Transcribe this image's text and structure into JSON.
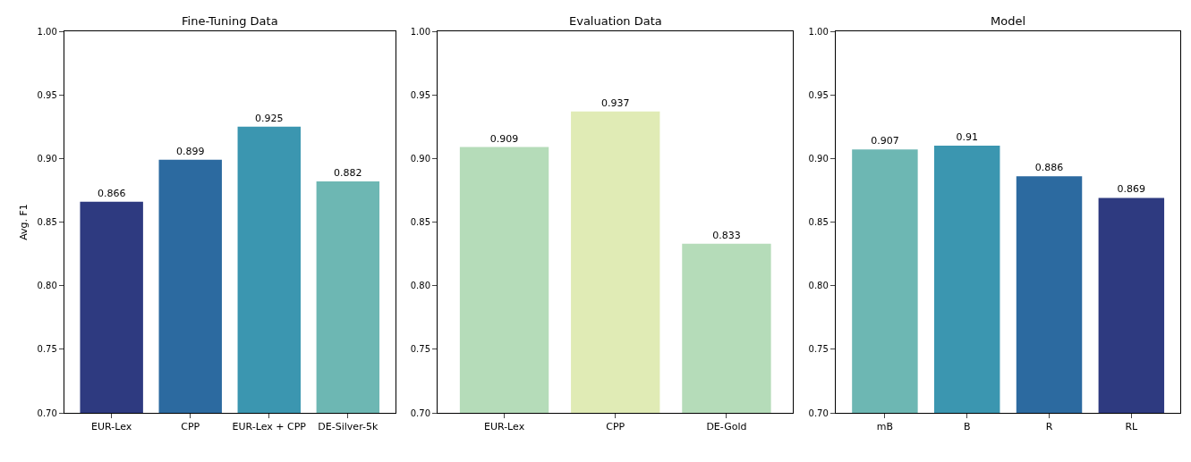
{
  "chart_data": [
    {
      "type": "bar",
      "title": "Fine-Tuning Data",
      "ylabel": "Avg. F1",
      "categories": [
        "EUR-Lex",
        "CPP",
        "EUR-Lex + CPP",
        "DE-Silver-5k"
      ],
      "values": [
        0.866,
        0.899,
        0.925,
        0.882
      ],
      "colors": [
        "#2e3a80",
        "#2c6aa0",
        "#3b96b0",
        "#6db7b3"
      ],
      "ylim": [
        0.7,
        1.0
      ],
      "yticks": [
        {
          "value": 0.7,
          "label": "0.70"
        },
        {
          "value": 0.75,
          "label": "0.75"
        },
        {
          "value": 0.8,
          "label": "0.80"
        },
        {
          "value": 0.85,
          "label": "0.85"
        },
        {
          "value": 0.9,
          "label": "0.90"
        },
        {
          "value": 0.95,
          "label": "0.95"
        },
        {
          "value": 1.0,
          "label": "1.00"
        }
      ],
      "data_labels": true
    },
    {
      "type": "bar",
      "title": "Evaluation Data",
      "categories": [
        "EUR-Lex",
        "CPP",
        "DE-Gold"
      ],
      "values": [
        0.909,
        0.937,
        0.833
      ],
      "colors": [
        "#b5dcb9",
        "#e0ebb5",
        "#b5dcb9"
      ],
      "ylim": [
        0.7,
        1.0
      ],
      "yticks": [
        {
          "value": 0.7,
          "label": "0.70"
        },
        {
          "value": 0.75,
          "label": "0.75"
        },
        {
          "value": 0.8,
          "label": "0.80"
        },
        {
          "value": 0.85,
          "label": "0.85"
        },
        {
          "value": 0.9,
          "label": "0.90"
        },
        {
          "value": 0.95,
          "label": "0.95"
        },
        {
          "value": 1.0,
          "label": "1.00"
        }
      ],
      "data_labels": true
    },
    {
      "type": "bar",
      "title": "Model",
      "categories": [
        "mB",
        "B",
        "R",
        "RL"
      ],
      "values": [
        0.907,
        0.91,
        0.886,
        0.869
      ],
      "colors": [
        "#6db7b3",
        "#3b96b0",
        "#2c6aa0",
        "#2e3a80"
      ],
      "ylim": [
        0.7,
        1.0
      ],
      "yticks": [
        {
          "value": 0.7,
          "label": "0.70"
        },
        {
          "value": 0.75,
          "label": "0.75"
        },
        {
          "value": 0.8,
          "label": "0.80"
        },
        {
          "value": 0.85,
          "label": "0.85"
        },
        {
          "value": 0.9,
          "label": "0.90"
        },
        {
          "value": 0.95,
          "label": "0.95"
        },
        {
          "value": 1.0,
          "label": "1.00"
        }
      ],
      "data_labels": true
    }
  ]
}
